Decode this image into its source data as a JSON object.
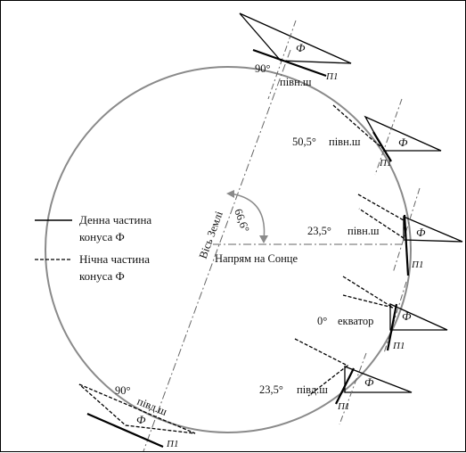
{
  "axis": {
    "label": "Вісь Землі",
    "angle_label": "66,6°"
  },
  "sun_direction": {
    "label": "Напрям на Сонце"
  },
  "legend": {
    "day": {
      "line1": "Денна частина",
      "line2": "конуса Ф"
    },
    "night": {
      "line1": "Нічна частина",
      "line2": "конуса Ф"
    }
  },
  "positions": [
    {
      "latitude": "90°",
      "hemisphere": "півн.ш",
      "cone_label": "Ф",
      "plane_label": "П1"
    },
    {
      "latitude": "50,5°",
      "hemisphere": "півн.ш",
      "cone_label": "Ф",
      "plane_label": "П1"
    },
    {
      "latitude": "23,5°",
      "hemisphere": "півн.ш",
      "cone_label": "Ф",
      "plane_label": "П1"
    },
    {
      "latitude": "0°",
      "hemisphere": "екватор",
      "cone_label": "Ф",
      "plane_label": "П1"
    },
    {
      "latitude": "23,5°",
      "hemisphere": "півд.ш",
      "cone_label": "Ф",
      "plane_label": "П1"
    },
    {
      "latitude": "90°",
      "hemisphere": "півд.ш",
      "cone_label": "Ф",
      "plane_label": "П1"
    }
  ]
}
